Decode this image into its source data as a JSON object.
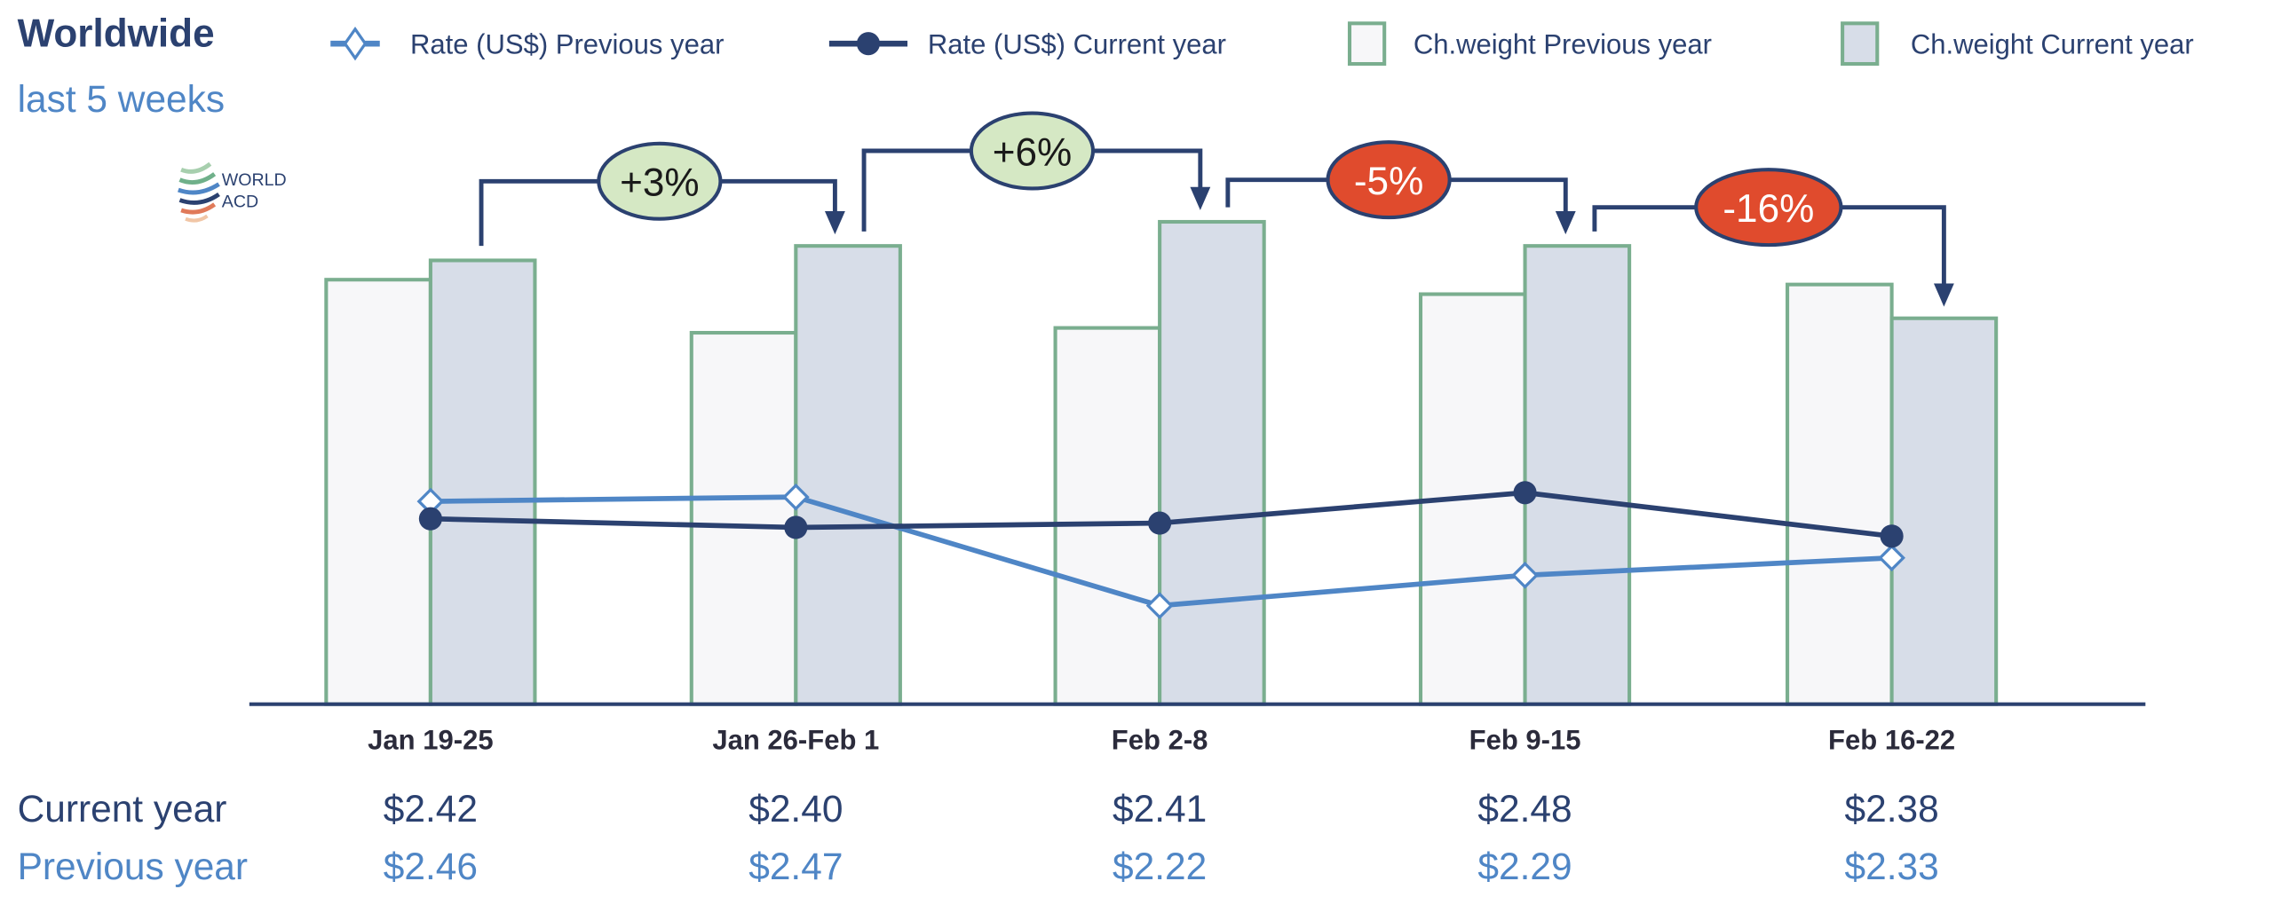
{
  "header": {
    "title": "Worldwide",
    "subtitle": "last 5 weeks"
  },
  "logo": {
    "line1": "WORLD",
    "line2": "ACD"
  },
  "legend": [
    {
      "label": "Rate (US$) Previous year",
      "icon": "diamond-line-icon"
    },
    {
      "label": "Rate (US$) Current year",
      "icon": "circle-line-icon"
    },
    {
      "label": "Ch.weight Previous year",
      "icon": "outlined-box-icon"
    },
    {
      "label": "Ch.weight Current year",
      "icon": "filled-box-icon"
    }
  ],
  "colors": {
    "navy": "#2b4170",
    "light_blue": "#4f86c6",
    "bar_stroke": "#7aae8f",
    "bar_prev_fill": "#f7f7f9",
    "bar_curr_fill": "#d7dde8",
    "positive_badge": "#d5e8c4",
    "negative_badge": "#e04b2d"
  },
  "chart_data": {
    "type": "bar",
    "title": "Worldwide",
    "subtitle": "last 5 weeks",
    "categories": [
      "Jan 19-25",
      "Jan 26-Feb 1",
      "Feb 2-8",
      "Feb 9-15",
      "Feb 16-22"
    ],
    "bar_series": [
      {
        "name": "Ch.weight Previous year",
        "values": [
          88,
          77,
          78,
          85,
          87
        ],
        "unit": "relative index (max = 100)"
      },
      {
        "name": "Ch.weight Current year",
        "values": [
          92,
          95,
          100,
          95,
          80
        ],
        "unit": "relative index (max = 100)"
      }
    ],
    "line_series": [
      {
        "name": "Rate (US$) Previous year",
        "values": [
          2.46,
          2.47,
          2.22,
          2.29,
          2.33
        ]
      },
      {
        "name": "Rate (US$) Current year",
        "values": [
          2.42,
          2.4,
          2.41,
          2.48,
          2.38
        ]
      }
    ],
    "week_on_week_changes": [
      "+3%",
      "+6%",
      "-5%",
      "-16%"
    ],
    "table": {
      "rows": [
        {
          "label": "Current year",
          "values": [
            "$2.42",
            "$2.40",
            "$2.41",
            "$2.48",
            "$2.38"
          ]
        },
        {
          "label": "Previous year",
          "values": [
            "$2.46",
            "$2.47",
            "$2.22",
            "$2.29",
            "$2.33"
          ]
        }
      ]
    },
    "legend_position": "top",
    "grid": false
  }
}
